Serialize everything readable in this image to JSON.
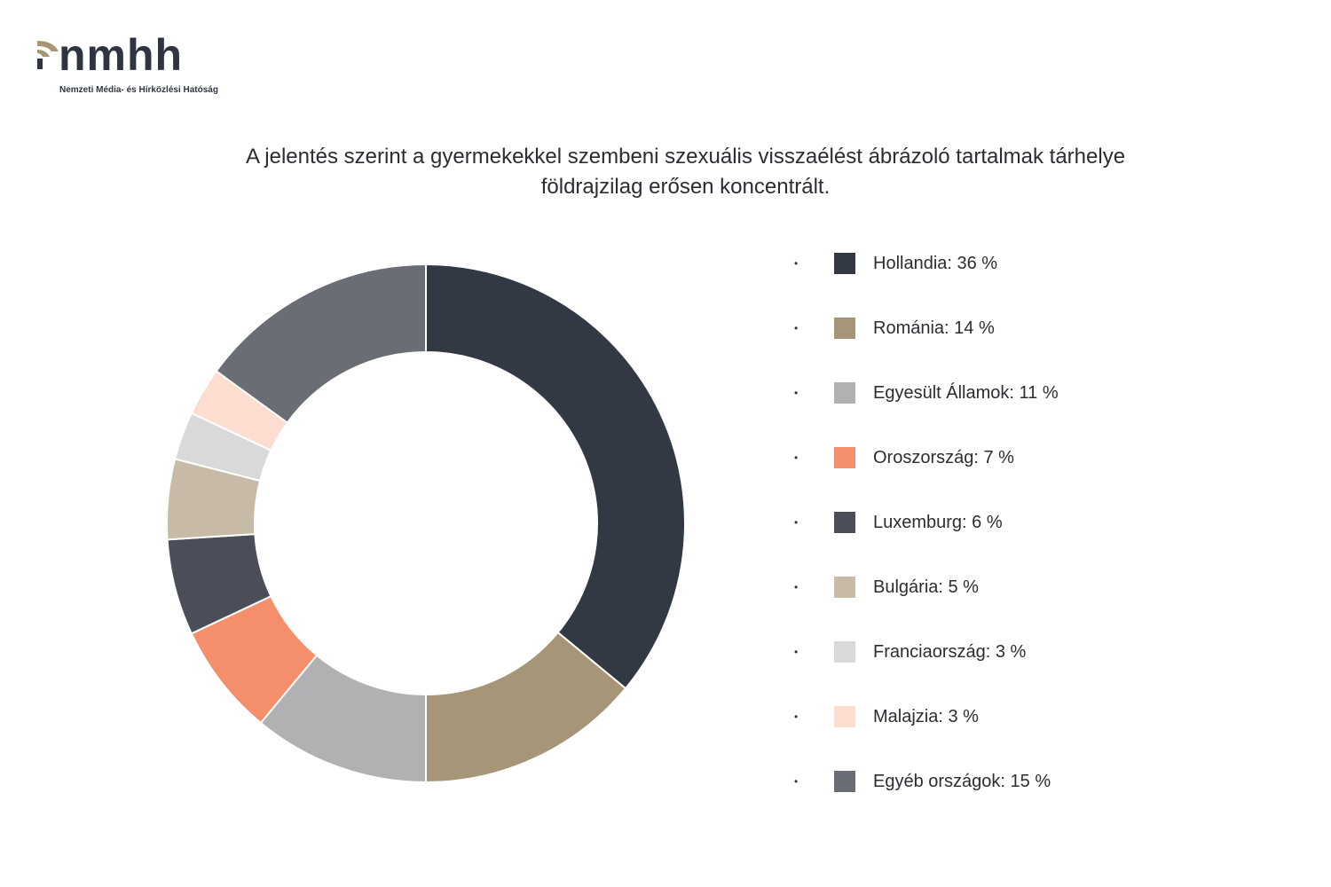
{
  "logo": {
    "text": "nmhh",
    "subtitle": "Nemzeti Média- és Hírközlési Hatóság",
    "accent_color": "#a69577",
    "text_color": "#2f3540"
  },
  "title_lines": [
    "A jelentés szerint a gyermekekkel szembeni szexuális visszaélést ábrázoló tartalmak tárhelye",
    "földrajzilag erősen koncentrált."
  ],
  "legend_bullet": "•",
  "chart_data": {
    "type": "pie",
    "donut": true,
    "title": "A jelentés szerint a gyermekekkel szembeni szexuális visszaélést ábrázoló tartalmak tárhelye földrajzilag erősen koncentrált.",
    "legend_position": "right",
    "slices": [
      {
        "label": "Hollandia: 36 %",
        "value": 36,
        "color": "#323844"
      },
      {
        "label": "Románia: 14 %",
        "value": 14,
        "color": "#a69577"
      },
      {
        "label": "Egyesült Államok: 11 %",
        "value": 11,
        "color": "#b1b0b2"
      },
      {
        "label": "Oroszország: 7 %",
        "value": 7,
        "color": "#f58f6b"
      },
      {
        "label": "Luxemburg: 6 %",
        "value": 6,
        "color": "#4b4e58"
      },
      {
        "label": "Bulgária: 5 %",
        "value": 5,
        "color": "#c7baa6"
      },
      {
        "label": "Franciaország: 3 %",
        "value": 3,
        "color": "#d9d9da"
      },
      {
        "label": "Malajzia: 3 %",
        "value": 3,
        "color": "#fcddcf"
      },
      {
        "label": "Egyéb országok: 15 %",
        "value": 15,
        "color": "#6b6d74"
      }
    ]
  }
}
